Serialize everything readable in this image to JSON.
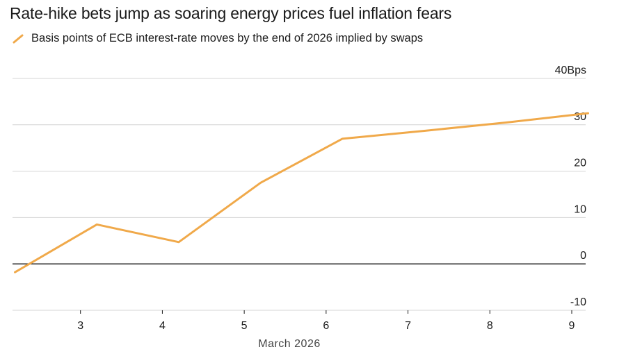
{
  "header": {
    "title": "Rate-hike bets jump as soaring energy prices fuel inflation fears"
  },
  "chart_data": {
    "type": "line",
    "title": "Rate-hike bets jump as soaring energy prices fuel inflation fears",
    "xlabel": "March 2026",
    "ylabel": "",
    "xlim": [
      2.17,
      9.17
    ],
    "ylim": [
      -10,
      40
    ],
    "x_ticks": [
      3,
      4,
      5,
      6,
      7,
      8,
      9
    ],
    "y_ticks": [
      -10,
      0,
      10,
      20,
      30,
      40
    ],
    "y_tick_labels": [
      "-10",
      "0",
      "10",
      "20",
      "30",
      "40Bps"
    ],
    "grid": true,
    "legend_position": "top-left",
    "series": [
      {
        "name": "Basis points of ECB interest-rate moves by the end of 2026 implied by swaps",
        "color": "#f0a94a",
        "x": [
          2.2,
          3.2,
          4.2,
          5.2,
          6.2,
          7.2,
          8.2,
          9.2
        ],
        "y": [
          -1.8,
          8.5,
          4.7,
          17.5,
          27.0,
          28.7,
          30.5,
          32.5
        ]
      }
    ]
  }
}
